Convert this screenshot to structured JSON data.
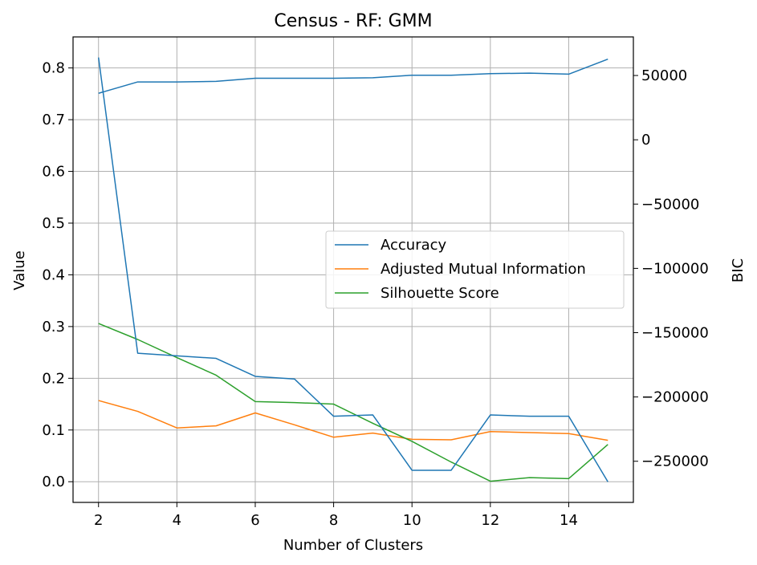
{
  "chart_data": {
    "type": "line",
    "title": "Census - RF: GMM",
    "xlabel": "Number of Clusters",
    "ylabel": "Value",
    "y2label": "BIC",
    "x": [
      2,
      3,
      4,
      5,
      6,
      7,
      8,
      9,
      10,
      11,
      12,
      13,
      14,
      15
    ],
    "xticks": [
      2,
      4,
      6,
      8,
      10,
      12,
      14
    ],
    "xlim": [
      1.35,
      15.65
    ],
    "ylim": [
      -0.04,
      0.86
    ],
    "yticks": [
      0.0,
      0.1,
      0.2,
      0.3,
      0.4,
      0.5,
      0.6,
      0.7,
      0.8
    ],
    "ytick_labels": [
      "0.0",
      "0.1",
      "0.2",
      "0.3",
      "0.4",
      "0.5",
      "0.6",
      "0.7",
      "0.8"
    ],
    "y2lim": [
      -282000,
      80000
    ],
    "y2ticks": [
      50000,
      0,
      -50000,
      -100000,
      -150000,
      -200000,
      -250000
    ],
    "y2tick_labels": [
      "50000",
      "0",
      "−50000",
      "−100000",
      "−150000",
      "−200000",
      "−250000"
    ],
    "grid": true,
    "legend_position": "center-right",
    "series": [
      {
        "name": "Accuracy",
        "axis": "left",
        "color": "#1f77b4",
        "values": [
          0.751,
          0.773,
          0.773,
          0.774,
          0.78,
          0.78,
          0.78,
          0.781,
          0.786,
          0.786,
          0.789,
          0.79,
          0.788,
          0.817
        ]
      },
      {
        "name": "Adjusted Mutual Information",
        "axis": "left",
        "color": "#ff7f0e",
        "values": [
          0.157,
          0.136,
          0.104,
          0.108,
          0.133,
          0.11,
          0.086,
          0.094,
          0.082,
          0.081,
          0.097,
          0.095,
          0.093,
          0.08
        ]
      },
      {
        "name": "Silhouette Score",
        "axis": "left",
        "color": "#2ca02c",
        "values": [
          0.306,
          0.275,
          0.24,
          0.206,
          0.155,
          0.153,
          0.15,
          0.113,
          0.078,
          0.038,
          0.001,
          0.008,
          0.006,
          0.072
        ]
      },
      {
        "name": "",
        "axis": "right",
        "color": "#1f77b4",
        "values": [
          64000,
          -166000,
          -168000,
          -170000,
          -184000,
          -186000,
          -215000,
          -214000,
          -257000,
          -257000,
          -214000,
          -215000,
          -215000,
          -266000
        ]
      }
    ]
  }
}
